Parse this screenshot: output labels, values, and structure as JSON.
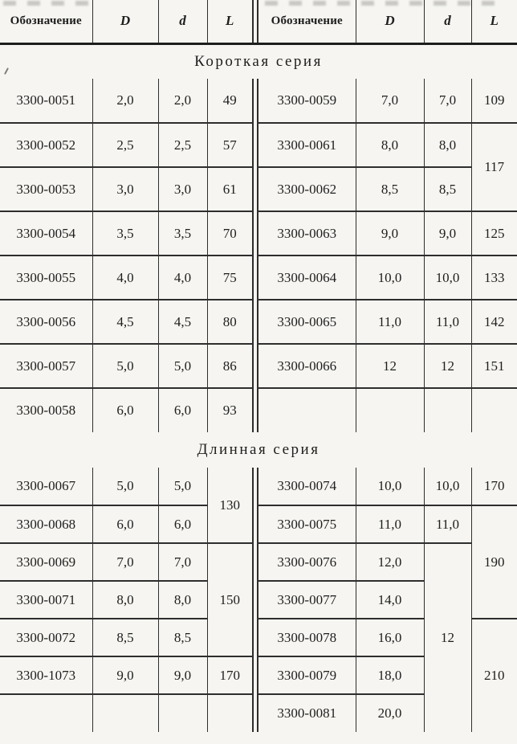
{
  "page": {
    "paper": "#f6f5f1",
    "ink": "#1e1e1e",
    "line": "#2e2e2e"
  },
  "t": {
    "headers": {
      "designation": "Обозначение",
      "D": "D",
      "d": "d",
      "L": "L"
    },
    "sections": [
      {
        "title": "Короткая серия",
        "rows": [
          {
            "l_des": "3300-0051",
            "l_D": "2,0",
            "l_d": "2,0",
            "l_L": "49",
            "r_des": "3300-0059",
            "r_D": "7,0",
            "r_d": "7,0",
            "r_L": "109"
          },
          {
            "l_des": "3300-0052",
            "l_D": "2,5",
            "l_d": "2,5",
            "l_L": "57",
            "r_des": "3300-0061",
            "r_D": "8,0",
            "r_d": "8,0",
            "r_L": "117"
          },
          {
            "l_des": "3300-0053",
            "l_D": "3,0",
            "l_d": "3,0",
            "l_L": "61",
            "r_des": "3300-0062",
            "r_D": "8,5",
            "r_d": "8,5"
          },
          {
            "l_des": "3300-0054",
            "l_D": "3,5",
            "l_d": "3,5",
            "l_L": "70",
            "r_des": "3300-0063",
            "r_D": "9,0",
            "r_d": "9,0",
            "r_L": "125"
          },
          {
            "l_des": "3300-0055",
            "l_D": "4,0",
            "l_d": "4,0",
            "l_L": "75",
            "r_des": "3300-0064",
            "r_D": "10,0",
            "r_d": "10,0",
            "r_L": "133"
          },
          {
            "l_des": "3300-0056",
            "l_D": "4,5",
            "l_d": "4,5",
            "l_L": "80",
            "r_des": "3300-0065",
            "r_D": "11,0",
            "r_d": "11,0",
            "r_L": "142"
          },
          {
            "l_des": "3300-0057",
            "l_D": "5,0",
            "l_d": "5,0",
            "l_L": "86",
            "r_des": "3300-0066",
            "r_D": "12",
            "r_d": "12",
            "r_L": "151"
          },
          {
            "l_des": "3300-0058",
            "l_D": "6,0",
            "l_d": "6,0",
            "l_L": "93",
            "r_des": "",
            "r_D": "",
            "r_d": "",
            "r_L": ""
          }
        ]
      },
      {
        "title": "Длинная серия",
        "rows": [
          {
            "l_des": "3300-0067",
            "l_D": "5,0",
            "l_d": "5,0",
            "l_L": "130",
            "r_des": "3300-0074",
            "r_D": "10,0",
            "r_d": "10,0",
            "r_L": "170"
          },
          {
            "l_des": "3300-0068",
            "l_D": "6,0",
            "l_d": "6,0",
            "r_des": "3300-0075",
            "r_D": "11,0",
            "r_d": "11,0",
            "r_L": "190"
          },
          {
            "l_des": "3300-0069",
            "l_D": "7,0",
            "l_d": "7,0",
            "l_L": "150",
            "r_des": "3300-0076",
            "r_D": "12,0",
            "r_d": "12"
          },
          {
            "l_des": "3300-0071",
            "l_D": "8,0",
            "l_d": "8,0",
            "r_des": "3300-0077",
            "r_D": "14,0"
          },
          {
            "l_des": "3300-0072",
            "l_D": "8,5",
            "l_d": "8,5",
            "r_des": "3300-0078",
            "r_D": "16,0",
            "r_L": "210"
          },
          {
            "l_des": "3300-1073",
            "l_D": "9,0",
            "l_d": "9,0",
            "l_L": "170",
            "r_des": "3300-0079",
            "r_D": "18,0"
          },
          {
            "l_des": "",
            "l_D": "",
            "l_d": "",
            "l_L": "",
            "r_des": "3300-0081",
            "r_D": "20,0"
          }
        ]
      }
    ]
  }
}
